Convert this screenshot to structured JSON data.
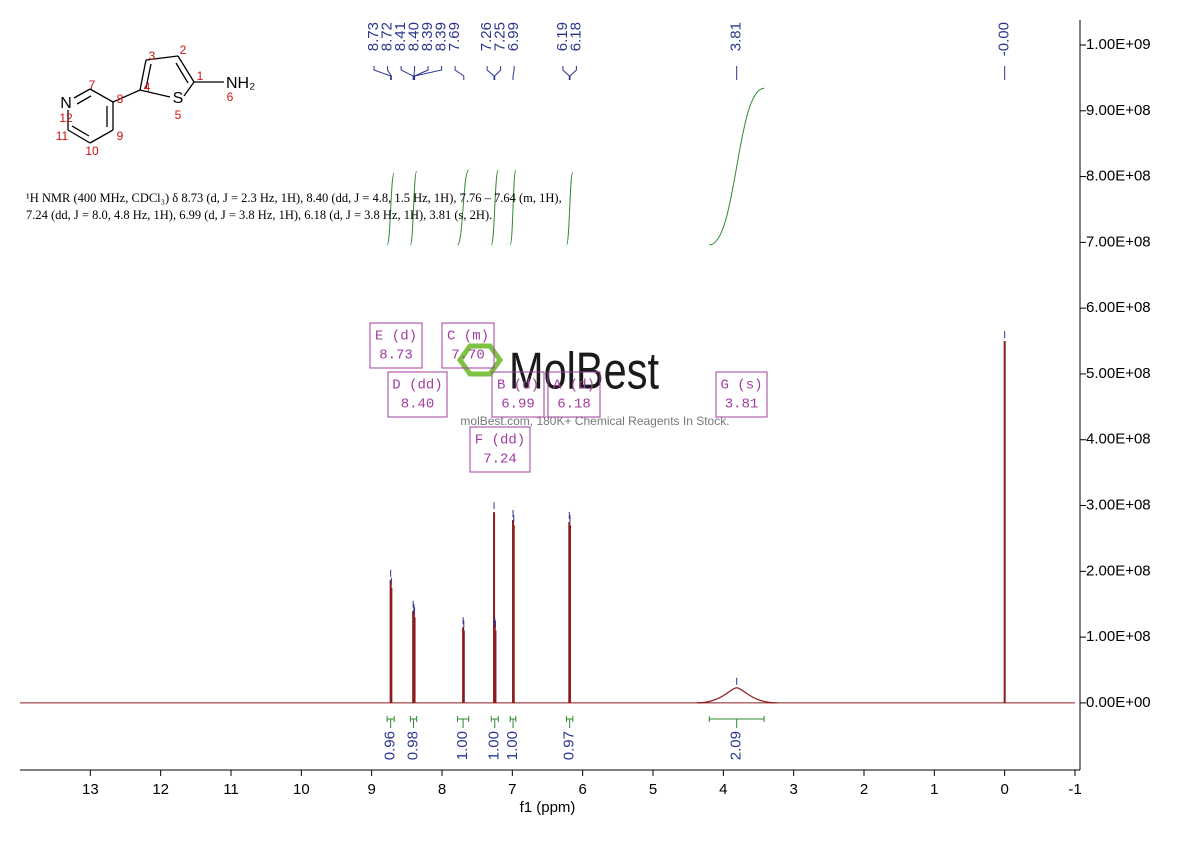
{
  "chart_data": {
    "type": "nmr",
    "xlabel": "f1 (ppm)",
    "xlim": [
      14,
      -1
    ],
    "xticks": [
      13,
      12,
      11,
      10,
      9,
      8,
      7,
      6,
      5,
      4,
      3,
      2,
      1,
      0,
      -1
    ],
    "ylim": [
      -102000000,
      1038000000
    ],
    "yticks": [
      {
        "value": 0,
        "label": "0.00E+00"
      },
      {
        "value": 100000000,
        "label": "1.00E+08"
      },
      {
        "value": 200000000,
        "label": "2.00E+08"
      },
      {
        "value": 300000000,
        "label": "3.00E+08"
      },
      {
        "value": 400000000,
        "label": "4.00E+08"
      },
      {
        "value": 500000000,
        "label": "5.00E+08"
      },
      {
        "value": 600000000,
        "label": "6.00E+08"
      },
      {
        "value": 700000000,
        "label": "7.00E+08"
      },
      {
        "value": 800000000,
        "label": "8.00E+08"
      },
      {
        "value": 900000000,
        "label": "9.00E+08"
      },
      {
        "value": 1000000000,
        "label": "1.00E+09"
      }
    ],
    "color": "#8b1c1c",
    "peaks": {
      "x": [
        8.73,
        8.72,
        8.41,
        8.4,
        8.39,
        7.7,
        7.69,
        7.26,
        7.25,
        7.24,
        6.99,
        6.98,
        6.19,
        6.18,
        3.81,
        0.0
      ],
      "values": [
        187000000,
        175000000,
        140000000,
        135000000,
        130000000,
        115000000,
        110000000,
        290000000,
        115000000,
        110000000,
        278000000,
        270000000,
        275000000,
        270000000,
        23000000,
        550000000
      ]
    },
    "peak_labels": [
      {
        "value": 8.73,
        "label": "8.73"
      },
      {
        "value": 8.72,
        "label": "8.72"
      },
      {
        "value": 8.41,
        "label": "8.41"
      },
      {
        "value": 8.4,
        "label": "8.40"
      },
      {
        "value": 8.39,
        "label": "8.39"
      },
      {
        "value": 8.39,
        "label": "8.39"
      },
      {
        "value": 7.69,
        "label": "7.69"
      },
      {
        "value": 7.26,
        "label": "7.26"
      },
      {
        "value": 7.25,
        "label": "7.25"
      },
      {
        "value": 6.99,
        "label": "6.99"
      },
      {
        "value": 6.19,
        "label": "6.19"
      },
      {
        "value": 6.18,
        "label": "6.18"
      },
      {
        "value": 3.81,
        "label": "3.81"
      },
      {
        "value": 0,
        "label": "-0.00"
      }
    ],
    "integrals": {
      "from": [
        8.78,
        8.45,
        7.78,
        7.3,
        7.03,
        6.23,
        4.2
      ],
      "to": [
        8.68,
        8.36,
        7.62,
        7.2,
        6.95,
        6.14,
        3.42
      ],
      "values": [
        0.96,
        0.98,
        1.0,
        1.0,
        1.0,
        0.97,
        2.09
      ],
      "value_labels": [
        "0.96",
        "0.98",
        "1.00",
        "1.00",
        "1.00",
        "0.97",
        "2.09"
      ]
    },
    "multiplets": [
      {
        "name": "E (d)",
        "shift": "8.73"
      },
      {
        "name": "C (m)",
        "shift": "7.70"
      },
      {
        "name": "D (dd)",
        "shift": "8.40"
      },
      {
        "name": "B (d)",
        "shift": "6.99"
      },
      {
        "name": "A (d)",
        "shift": "6.18"
      },
      {
        "name": "G (s)",
        "shift": "3.81"
      },
      {
        "name": "F (dd)",
        "shift": "7.24"
      }
    ],
    "description": "¹H NMR (400 MHz, CDCl₃) δ 8.73 (d, J = 2.3 Hz, 1H), 8.40 (dd, J = 4.8, 1.5 Hz, 1H), 7.76 – 7.64 (m, 1H), 7.24 (dd, J = 8.0, 4.8 Hz, 1H), 6.99 (d, J = 3.8 Hz, 1H), 6.18 (d, J = 3.8 Hz, 1H), 3.81 (s, 2H).",
    "structure": {
      "atoms": [
        "N",
        "S",
        "NH₂"
      ],
      "numbers": [
        "1",
        "2",
        "3",
        "4",
        "5",
        "6",
        "7",
        "8",
        "9",
        "10",
        "11",
        "12"
      ]
    },
    "watermark": {
      "brand": "MolBest",
      "tagline": "molBest.com, 180K+ Chemical Reagents In Stock."
    }
  }
}
